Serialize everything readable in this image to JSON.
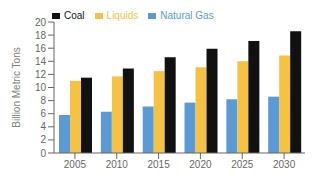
{
  "chart_data": {
    "type": "bar",
    "categories": [
      "2005",
      "2010",
      "2015",
      "2020",
      "2025",
      "2030"
    ],
    "series": [
      {
        "name": "Natural Gas",
        "color": "#5b9bd5",
        "values": [
          5.8,
          6.3,
          7.1,
          7.7,
          8.2,
          8.6
        ]
      },
      {
        "name": "Liquids",
        "color": "#f5c242",
        "values": [
          11.0,
          11.7,
          12.5,
          13.1,
          14.0,
          14.9
        ]
      },
      {
        "name": "Coal",
        "color": "#111111",
        "values": [
          11.5,
          12.9,
          14.6,
          15.9,
          17.1,
          18.6
        ]
      }
    ],
    "ylabel": "Billion Metric Tons",
    "ylim": [
      0,
      20
    ],
    "yticks": [
      0,
      2,
      4,
      6,
      8,
      10,
      12,
      14,
      16,
      18,
      20
    ],
    "legend": "upper left",
    "grid": false
  }
}
